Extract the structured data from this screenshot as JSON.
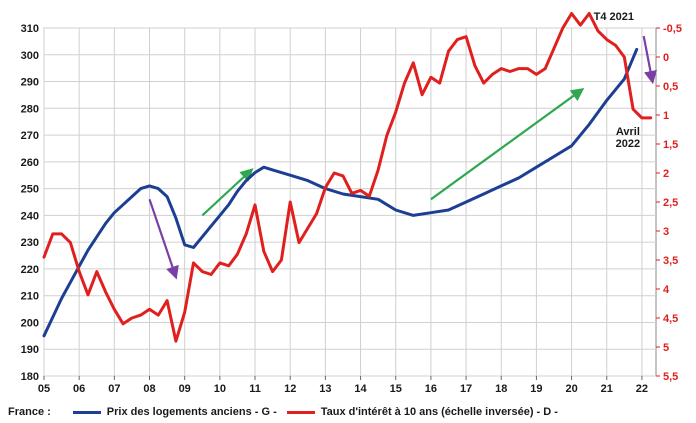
{
  "chart_data": {
    "type": "line",
    "x_ticks": [
      "05",
      "06",
      "07",
      "08",
      "09",
      "10",
      "11",
      "12",
      "13",
      "14",
      "15",
      "16",
      "17",
      "18",
      "19",
      "20",
      "21",
      "22"
    ],
    "left_axis": {
      "ylim": [
        180,
        310
      ],
      "ticks": [
        "180",
        "190",
        "200",
        "210",
        "220",
        "230",
        "240",
        "250",
        "260",
        "270",
        "280",
        "290",
        "300",
        "310"
      ]
    },
    "right_axis": {
      "inverted": true,
      "ylim": [
        5.5,
        -0.5
      ],
      "ticks": [
        "-0,5",
        "0",
        "0,5",
        "1",
        "1,5",
        "2",
        "2,5",
        "3",
        "3,5",
        "4",
        "4,5",
        "5",
        "5,5"
      ]
    },
    "colors": {
      "price": "#1c3f94",
      "rate": "#e0201e",
      "arrow_green": "#2fa84f",
      "arrow_purple": "#7a3fa6"
    },
    "series": [
      {
        "name": "Prix des logements anciens - G -",
        "axis": "left",
        "x": [
          2005.0,
          2005.25,
          2005.5,
          2005.75,
          2006.0,
          2006.25,
          2006.5,
          2006.75,
          2007.0,
          2007.25,
          2007.5,
          2007.75,
          2008.0,
          2008.25,
          2008.5,
          2008.75,
          2009.0,
          2009.25,
          2009.5,
          2009.75,
          2010.0,
          2010.25,
          2010.5,
          2010.75,
          2011.0,
          2011.25,
          2011.5,
          2011.75,
          2012.0,
          2012.5,
          2013.0,
          2013.5,
          2014.0,
          2014.5,
          2015.0,
          2015.5,
          2016.0,
          2016.5,
          2017.0,
          2017.5,
          2018.0,
          2018.5,
          2019.0,
          2019.5,
          2020.0,
          2020.5,
          2021.0,
          2021.5,
          2021.85
        ],
        "y": [
          195,
          202,
          209,
          215,
          221,
          227,
          232,
          237,
          241,
          244,
          247,
          250,
          251,
          250,
          247,
          239,
          229,
          228,
          232,
          236,
          240,
          244,
          249,
          253,
          256,
          258,
          257,
          256,
          255,
          253,
          250,
          248,
          247,
          246,
          242,
          240,
          241,
          242,
          245,
          248,
          251,
          254,
          258,
          262,
          266,
          274,
          283,
          291,
          302
        ]
      },
      {
        "name": "Taux d'intérêt à 10 ans (échelle inversée) - D -",
        "axis": "right",
        "x": [
          2005.0,
          2005.25,
          2005.5,
          2005.75,
          2006.0,
          2006.25,
          2006.5,
          2006.75,
          2007.0,
          2007.25,
          2007.5,
          2007.75,
          2008.0,
          2008.25,
          2008.5,
          2008.75,
          2009.0,
          2009.25,
          2009.5,
          2009.75,
          2010.0,
          2010.25,
          2010.5,
          2010.75,
          2011.0,
          2011.25,
          2011.5,
          2011.75,
          2012.0,
          2012.25,
          2012.5,
          2012.75,
          2013.0,
          2013.25,
          2013.5,
          2013.75,
          2014.0,
          2014.25,
          2014.5,
          2014.75,
          2015.0,
          2015.25,
          2015.5,
          2015.75,
          2016.0,
          2016.25,
          2016.5,
          2016.75,
          2017.0,
          2017.25,
          2017.5,
          2017.75,
          2018.0,
          2018.25,
          2018.5,
          2018.75,
          2019.0,
          2019.25,
          2019.5,
          2019.75,
          2020.0,
          2020.25,
          2020.5,
          2020.75,
          2021.0,
          2021.25,
          2021.5,
          2021.75,
          2022.0,
          2022.25
        ],
        "y": [
          3.45,
          3.05,
          3.05,
          3.2,
          3.7,
          4.1,
          3.7,
          4.05,
          4.35,
          4.6,
          4.5,
          4.45,
          4.35,
          4.45,
          4.2,
          4.9,
          4.4,
          3.55,
          3.7,
          3.75,
          3.55,
          3.6,
          3.4,
          3.05,
          2.55,
          3.35,
          3.7,
          3.5,
          2.5,
          3.2,
          2.95,
          2.7,
          2.25,
          2.0,
          2.05,
          2.35,
          2.3,
          2.4,
          1.95,
          1.35,
          0.95,
          0.45,
          0.1,
          0.65,
          0.35,
          0.45,
          -0.1,
          -0.3,
          -0.35,
          0.15,
          0.45,
          0.3,
          0.2,
          0.25,
          0.2,
          0.2,
          0.3,
          0.2,
          -0.15,
          -0.5,
          -0.75,
          -0.55,
          -0.75,
          -0.45,
          -0.3,
          -0.2,
          0.0,
          0.9,
          1.05,
          1.05
        ]
      }
    ],
    "annotations": [
      "T4 2021",
      "Avril 2022"
    ],
    "grid": true,
    "legend": "bottom"
  },
  "legend": {
    "prefix": "France :",
    "price_label": "Prix des logements anciens - G -",
    "rate_label": "Taux d'intérêt à 10 ans (échelle inversée) - D -"
  }
}
